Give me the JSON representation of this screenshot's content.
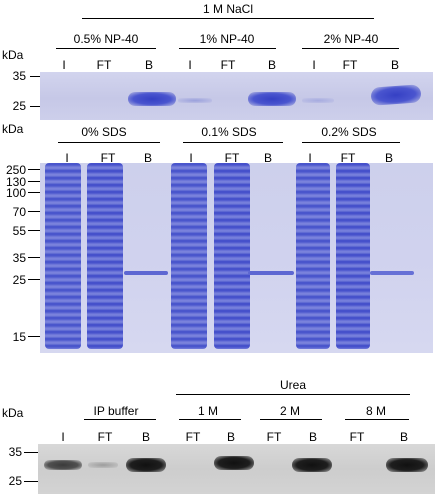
{
  "top": {
    "header": "1 M NaCl",
    "conditions": [
      "0.5% NP-40",
      "1% NP-40",
      "2% NP-40"
    ],
    "kda": "kDa",
    "lanes": [
      "I",
      "FT",
      "B",
      "I",
      "FT",
      "B",
      "I",
      "FT",
      "B"
    ],
    "markers": [
      "35",
      "25"
    ]
  },
  "middle": {
    "kda": "kDa",
    "conditions": [
      "0% SDS",
      "0.1% SDS",
      "0.2% SDS"
    ],
    "lanes": [
      "I",
      "FT",
      "B",
      "I",
      "FT",
      "B",
      "I",
      "FT",
      "B"
    ],
    "markers": [
      "250",
      "130",
      "100",
      "70",
      "55",
      "35",
      "25",
      "15"
    ]
  },
  "bottom": {
    "header": "Urea",
    "conditions": [
      "IP buffer",
      "1 M",
      "2 M",
      "8 M"
    ],
    "kda": "kDa",
    "lanes": [
      "I",
      "FT",
      "B",
      "FT",
      "B",
      "FT",
      "B",
      "FT",
      "B"
    ],
    "markers": [
      "35",
      "25"
    ]
  },
  "colors": {
    "coomassie_bg": "#c8cae8",
    "coomassie_band": "#3a46c6",
    "western_bg": "#cfcfcf",
    "western_band": "#141414"
  }
}
